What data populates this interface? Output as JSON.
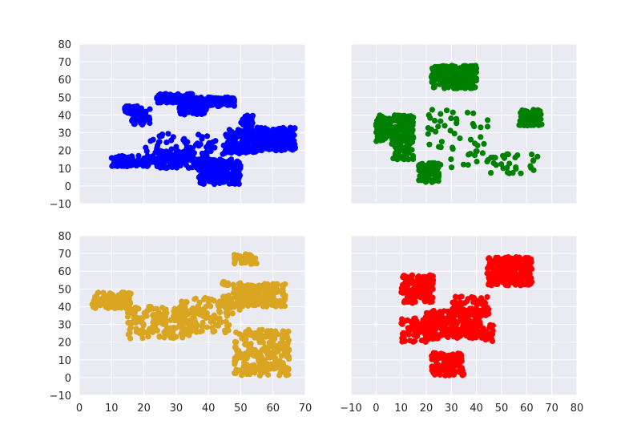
{
  "chart_data": [
    {
      "type": "scatter",
      "panel": "top-left",
      "color": "#0000ff",
      "xlim": [
        0,
        70
      ],
      "ylim": [
        -10,
        80
      ],
      "xticks": [
        0,
        10,
        20,
        30,
        40,
        50,
        60,
        70
      ],
      "yticks": [
        -10,
        0,
        10,
        20,
        30,
        40,
        50,
        60,
        70,
        80
      ],
      "show_xtick_labels": false,
      "show_ytick_labels": true,
      "grid": true,
      "clusters": [
        {
          "xr": [
            14,
            18
          ],
          "yr": [
            41,
            45
          ],
          "n": 70
        },
        {
          "xr": [
            24,
            35
          ],
          "yr": [
            47,
            52
          ],
          "n": 130
        },
        {
          "xr": [
            31,
            40
          ],
          "yr": [
            40,
            50
          ],
          "n": 110
        },
        {
          "xr": [
            40,
            48
          ],
          "yr": [
            45,
            50
          ],
          "n": 80
        },
        {
          "xr": [
            16,
            22
          ],
          "yr": [
            34,
            44
          ],
          "n": 40
        },
        {
          "xr": [
            10,
            25
          ],
          "yr": [
            11,
            17
          ],
          "n": 110
        },
        {
          "xr": [
            25,
            40
          ],
          "yr": [
            10,
            20
          ],
          "n": 120
        },
        {
          "xr": [
            37,
            50
          ],
          "yr": [
            1,
            15
          ],
          "n": 240
        },
        {
          "xr": [
            45,
            55
          ],
          "yr": [
            18,
            32
          ],
          "n": 120
        },
        {
          "xr": [
            55,
            67
          ],
          "yr": [
            20,
            33
          ],
          "n": 220
        },
        {
          "xr": [
            20,
            45
          ],
          "yr": [
            17,
            30
          ],
          "n": 60
        },
        {
          "xr": [
            50,
            54
          ],
          "yr": [
            33,
            40
          ],
          "n": 25
        }
      ]
    },
    {
      "type": "scatter",
      "panel": "top-right",
      "color": "#008000",
      "xlim": [
        -10,
        80
      ],
      "ylim": [
        -10,
        80
      ],
      "xticks": [
        -10,
        0,
        10,
        20,
        30,
        40,
        50,
        60,
        70,
        80
      ],
      "yticks": [
        -10,
        0,
        10,
        20,
        30,
        40,
        50,
        60,
        70,
        80
      ],
      "show_xtick_labels": false,
      "show_ytick_labels": false,
      "grid": true,
      "clusters": [
        {
          "xr": [
            22,
            40
          ],
          "yr": [
            55,
            68
          ],
          "n": 260
        },
        {
          "xr": [
            0,
            15
          ],
          "yr": [
            25,
            40
          ],
          "n": 220
        },
        {
          "xr": [
            6,
            15
          ],
          "yr": [
            15,
            25
          ],
          "n": 60
        },
        {
          "xr": [
            17,
            25
          ],
          "yr": [
            2,
            13
          ],
          "n": 90
        },
        {
          "xr": [
            57,
            66
          ],
          "yr": [
            34,
            43
          ],
          "n": 90
        },
        {
          "xr": [
            20,
            45
          ],
          "yr": [
            10,
            45
          ],
          "n": 55
        },
        {
          "xr": [
            45,
            65
          ],
          "yr": [
            7,
            18
          ],
          "n": 30
        }
      ]
    },
    {
      "type": "scatter",
      "panel": "bottom-left",
      "color": "#daa520",
      "xlim": [
        0,
        70
      ],
      "ylim": [
        -10,
        80
      ],
      "xticks": [
        0,
        10,
        20,
        30,
        40,
        50,
        60,
        70
      ],
      "yticks": [
        -10,
        0,
        10,
        20,
        30,
        40,
        50,
        60,
        70,
        80
      ],
      "show_xtick_labels": true,
      "show_ytick_labels": true,
      "grid": true,
      "clusters": [
        {
          "xr": [
            4,
            16
          ],
          "yr": [
            39,
            48
          ],
          "n": 110
        },
        {
          "xr": [
            15,
            35
          ],
          "yr": [
            22,
            40
          ],
          "n": 150
        },
        {
          "xr": [
            30,
            47
          ],
          "yr": [
            25,
            45
          ],
          "n": 120
        },
        {
          "xr": [
            48,
            64
          ],
          "yr": [
            40,
            53
          ],
          "n": 170
        },
        {
          "xr": [
            48,
            65
          ],
          "yr": [
            1,
            27
          ],
          "n": 260
        },
        {
          "xr": [
            48,
            55
          ],
          "yr": [
            64,
            70
          ],
          "n": 40
        },
        {
          "xr": [
            44,
            50
          ],
          "yr": [
            52,
            54
          ],
          "n": 15
        },
        {
          "xr": [
            44,
            50
          ],
          "yr": [
            36,
            48
          ],
          "n": 25
        }
      ]
    },
    {
      "type": "scatter",
      "panel": "bottom-right",
      "color": "#ff0000",
      "xlim": [
        -10,
        80
      ],
      "ylim": [
        -10,
        80
      ],
      "xticks": [
        -10,
        0,
        10,
        20,
        30,
        40,
        50,
        60,
        70,
        80
      ],
      "yticks": [
        -10,
        0,
        10,
        20,
        30,
        40,
        50,
        60,
        70,
        80
      ],
      "show_xtick_labels": true,
      "show_ytick_labels": false,
      "grid": true,
      "clusters": [
        {
          "xr": [
            44,
            62
          ],
          "yr": [
            52,
            68
          ],
          "n": 240
        },
        {
          "xr": [
            10,
            23
          ],
          "yr": [
            42,
            58
          ],
          "n": 150
        },
        {
          "xr": [
            10,
            25
          ],
          "yr": [
            20,
            35
          ],
          "n": 90
        },
        {
          "xr": [
            20,
            42
          ],
          "yr": [
            22,
            38
          ],
          "n": 230
        },
        {
          "xr": [
            30,
            45
          ],
          "yr": [
            35,
            46
          ],
          "n": 60
        },
        {
          "xr": [
            22,
            35
          ],
          "yr": [
            1,
            14
          ],
          "n": 130
        },
        {
          "xr": [
            40,
            47
          ],
          "yr": [
            20,
            30
          ],
          "n": 30
        }
      ]
    }
  ]
}
